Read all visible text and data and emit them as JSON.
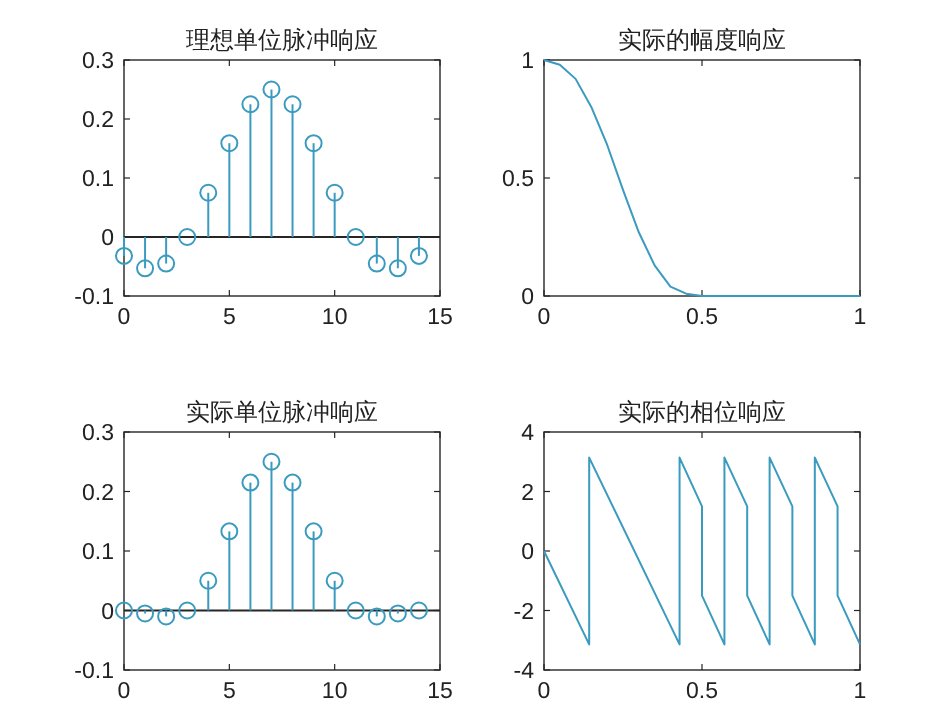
{
  "chart_data": [
    {
      "type": "lollipop",
      "title": "理想单位脉冲响应",
      "x": [
        0,
        1,
        2,
        3,
        4,
        5,
        6,
        7,
        8,
        9,
        10,
        11,
        12,
        13,
        14
      ],
      "series": [
        {
          "color": "#3b9bbf",
          "values": [
            -0.032,
            -0.053,
            -0.045,
            0,
            0.075,
            0.159,
            0.225,
            0.25,
            0.225,
            0.159,
            0.075,
            0,
            -0.045,
            -0.053,
            -0.032
          ]
        }
      ],
      "marker": "circle",
      "xlim": [
        0,
        15
      ],
      "xticks": [
        0,
        5,
        10,
        15
      ],
      "ylim": [
        -0.1,
        0.3
      ],
      "yticks": [
        -0.1,
        0,
        0.1,
        0.2,
        0.3
      ],
      "ref_lines": [
        {
          "axis": "y",
          "value": 0,
          "color": "#262626"
        }
      ]
    },
    {
      "type": "line",
      "title": "实际的幅度响应",
      "x": [
        0,
        0.05,
        0.1,
        0.15,
        0.2,
        0.25,
        0.3,
        0.35,
        0.4,
        0.45,
        0.5,
        0.6,
        0.7,
        0.8,
        0.9,
        1
      ],
      "series": [
        {
          "color": "#3b9bbf",
          "values": [
            1,
            0.98,
            0.92,
            0.8,
            0.64,
            0.45,
            0.27,
            0.13,
            0.04,
            0.01,
            0,
            0,
            0,
            0,
            0,
            0
          ]
        }
      ],
      "xlim": [
        0,
        1
      ],
      "xticks": [
        0,
        0.5,
        1
      ],
      "ylim": [
        0,
        1
      ],
      "yticks": [
        0,
        0.5,
        1
      ]
    },
    {
      "type": "lollipop",
      "title": "实际单位脉冲响应",
      "x": [
        0,
        1,
        2,
        3,
        4,
        5,
        6,
        7,
        8,
        9,
        10,
        11,
        12,
        13,
        14
      ],
      "series": [
        {
          "color": "#3b9bbf",
          "values": [
            0,
            -0.005,
            -0.01,
            0,
            0.05,
            0.133,
            0.215,
            0.25,
            0.215,
            0.133,
            0.05,
            0,
            -0.01,
            -0.005,
            0
          ]
        }
      ],
      "marker": "circle",
      "xlim": [
        0,
        15
      ],
      "xticks": [
        0,
        5,
        10,
        15
      ],
      "ylim": [
        -0.1,
        0.3
      ],
      "yticks": [
        -0.1,
        0,
        0.1,
        0.2,
        0.3
      ],
      "ref_lines": [
        {
          "axis": "y",
          "value": 0,
          "color": "#262626"
        }
      ]
    },
    {
      "type": "line",
      "title": "实际的相位响应",
      "x": [
        0,
        0.143,
        0.143,
        0.429,
        0.429,
        0.5,
        0.5,
        0.571,
        0.571,
        0.643,
        0.643,
        0.714,
        0.714,
        0.786,
        0.786,
        0.857,
        0.857,
        0.929,
        0.929,
        1
      ],
      "series": [
        {
          "color": "#3b9bbf",
          "values": [
            0,
            -3.14,
            3.14,
            -3.14,
            3.14,
            1.5,
            -1.5,
            -3.14,
            3.14,
            1.5,
            -1.5,
            -3.14,
            3.14,
            1.5,
            -1.5,
            -3.14,
            3.14,
            1.5,
            -1.5,
            -3.14
          ]
        }
      ],
      "xlim": [
        0,
        1
      ],
      "xticks": [
        0,
        0.5,
        1
      ],
      "ylim": [
        -4,
        4
      ],
      "yticks": [
        -4,
        -2,
        0,
        2,
        4
      ]
    }
  ]
}
